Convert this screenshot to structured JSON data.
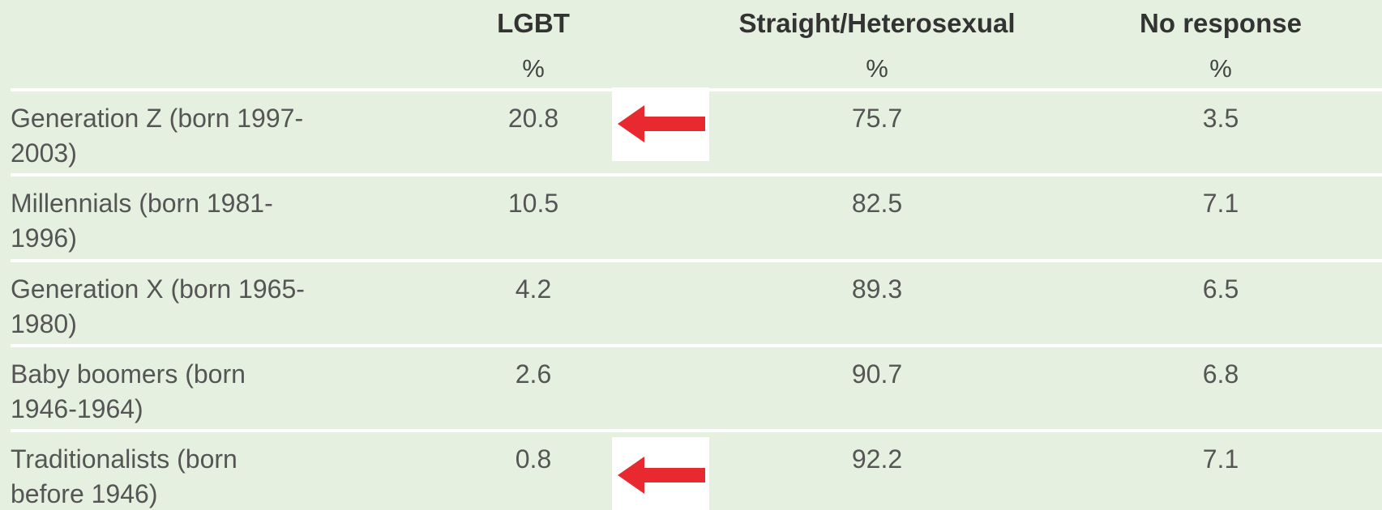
{
  "table": {
    "columns": [
      {
        "header": "LGBT",
        "unit": "%"
      },
      {
        "header": "Straight/Heterosexual",
        "unit": "%"
      },
      {
        "header": "No response",
        "unit": "%"
      }
    ],
    "rows": [
      {
        "label": [
          "Generation Z (born 1997-",
          "2003)"
        ],
        "values": [
          20.8,
          75.7,
          3.5
        ]
      },
      {
        "label": [
          "Millennials (born 1981-",
          "1996)"
        ],
        "values": [
          10.5,
          82.5,
          7.1
        ]
      },
      {
        "label": [
          "Generation X (born 1965-",
          "1980)"
        ],
        "values": [
          4.2,
          89.3,
          6.5
        ]
      },
      {
        "label": [
          "Baby boomers (born",
          "1946-1964)"
        ],
        "values": [
          2.6,
          90.7,
          6.8
        ]
      },
      {
        "label": [
          "Traditionalists (born",
          "before 1946)"
        ],
        "values": [
          0.8,
          92.2,
          7.1
        ]
      }
    ]
  }
}
